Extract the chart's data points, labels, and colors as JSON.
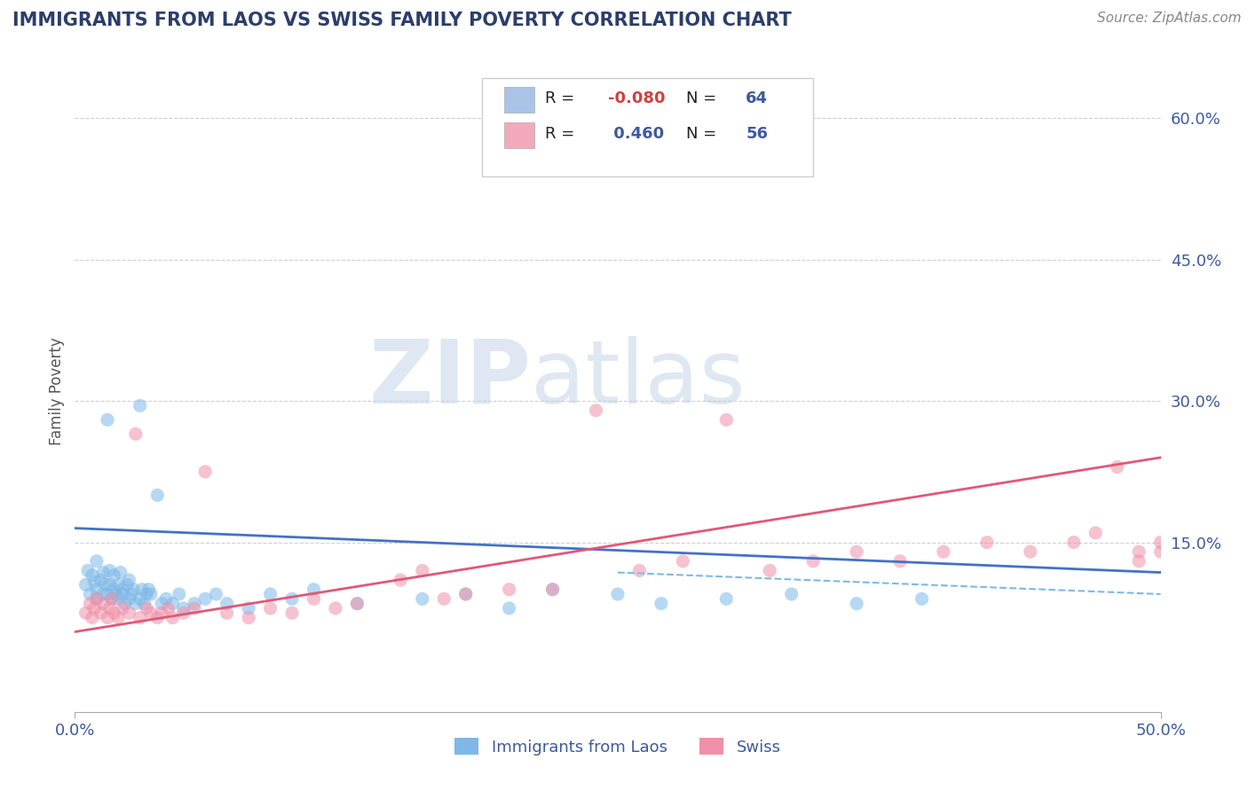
{
  "title": "IMMIGRANTS FROM LAOS VS SWISS FAMILY POVERTY CORRELATION CHART",
  "source": "Source: ZipAtlas.com",
  "ylabel": "Family Poverty",
  "legend_entries": [
    {
      "label": "Immigrants from Laos",
      "R": -0.08,
      "N": 64,
      "color": "#aac4e8"
    },
    {
      "label": "Swiss",
      "R": 0.46,
      "N": 56,
      "color": "#f4a8bc"
    }
  ],
  "yticks": [
    0.0,
    0.15,
    0.3,
    0.45,
    0.6
  ],
  "ytick_labels": [
    "",
    "15.0%",
    "30.0%",
    "45.0%",
    "60.0%"
  ],
  "xlim": [
    0.0,
    0.5
  ],
  "ylim": [
    -0.03,
    0.65
  ],
  "blue_scatter_x": [
    0.005,
    0.006,
    0.007,
    0.008,
    0.009,
    0.01,
    0.01,
    0.01,
    0.012,
    0.013,
    0.013,
    0.014,
    0.015,
    0.015,
    0.016,
    0.016,
    0.017,
    0.018,
    0.018,
    0.019,
    0.02,
    0.02,
    0.021,
    0.022,
    0.022,
    0.023,
    0.024,
    0.025,
    0.025,
    0.026,
    0.027,
    0.028,
    0.03,
    0.03,
    0.031,
    0.032,
    0.033,
    0.034,
    0.035,
    0.038,
    0.04,
    0.042,
    0.045,
    0.048,
    0.05,
    0.055,
    0.06,
    0.065,
    0.07,
    0.08,
    0.09,
    0.1,
    0.11,
    0.13,
    0.16,
    0.18,
    0.2,
    0.22,
    0.25,
    0.27,
    0.3,
    0.33,
    0.36,
    0.39
  ],
  "blue_scatter_y": [
    0.105,
    0.12,
    0.095,
    0.115,
    0.108,
    0.1,
    0.13,
    0.09,
    0.11,
    0.095,
    0.118,
    0.105,
    0.28,
    0.095,
    0.105,
    0.12,
    0.09,
    0.1,
    0.115,
    0.095,
    0.105,
    0.09,
    0.118,
    0.1,
    0.095,
    0.085,
    0.105,
    0.09,
    0.11,
    0.095,
    0.1,
    0.085,
    0.295,
    0.09,
    0.1,
    0.085,
    0.095,
    0.1,
    0.095,
    0.2,
    0.085,
    0.09,
    0.085,
    0.095,
    0.08,
    0.085,
    0.09,
    0.095,
    0.085,
    0.08,
    0.095,
    0.09,
    0.1,
    0.085,
    0.09,
    0.095,
    0.08,
    0.1,
    0.095,
    0.085,
    0.09,
    0.095,
    0.085,
    0.09
  ],
  "pink_scatter_x": [
    0.005,
    0.007,
    0.008,
    0.009,
    0.01,
    0.012,
    0.013,
    0.015,
    0.016,
    0.017,
    0.018,
    0.02,
    0.022,
    0.025,
    0.028,
    0.03,
    0.033,
    0.035,
    0.038,
    0.04,
    0.043,
    0.045,
    0.05,
    0.055,
    0.06,
    0.07,
    0.08,
    0.09,
    0.1,
    0.11,
    0.12,
    0.13,
    0.15,
    0.16,
    0.17,
    0.18,
    0.2,
    0.22,
    0.24,
    0.26,
    0.28,
    0.3,
    0.32,
    0.34,
    0.36,
    0.38,
    0.4,
    0.42,
    0.44,
    0.46,
    0.47,
    0.48,
    0.49,
    0.5,
    0.49,
    0.5
  ],
  "pink_scatter_y": [
    0.075,
    0.085,
    0.07,
    0.08,
    0.09,
    0.075,
    0.085,
    0.07,
    0.08,
    0.09,
    0.075,
    0.07,
    0.08,
    0.075,
    0.265,
    0.07,
    0.08,
    0.075,
    0.07,
    0.075,
    0.08,
    0.07,
    0.075,
    0.08,
    0.225,
    0.075,
    0.07,
    0.08,
    0.075,
    0.09,
    0.08,
    0.085,
    0.11,
    0.12,
    0.09,
    0.095,
    0.1,
    0.1,
    0.29,
    0.12,
    0.13,
    0.28,
    0.12,
    0.13,
    0.14,
    0.13,
    0.14,
    0.15,
    0.14,
    0.15,
    0.16,
    0.23,
    0.14,
    0.15,
    0.13,
    0.14
  ],
  "blue_line_x": [
    0.0,
    0.5
  ],
  "blue_line_y": [
    0.165,
    0.118
  ],
  "blue_dashed_line_x": [
    0.25,
    0.5
  ],
  "blue_dashed_line_y": [
    0.118,
    0.095
  ],
  "pink_line_x": [
    0.0,
    0.5
  ],
  "pink_line_y": [
    0.055,
    0.24
  ],
  "watermark_zip": "ZIP",
  "watermark_atlas": "atlas",
  "title_color": "#2c3e6b",
  "source_color": "#888888",
  "axis_label_color": "#555555",
  "tick_color": "#3d5a9e",
  "scatter_blue_color": "#7db8e8",
  "scatter_pink_color": "#f090a8",
  "line_blue_color": "#4472c4",
  "line_pink_color": "#e05878",
  "grid_color": "#d0d0d0",
  "background_color": "#ffffff",
  "legend_R_color": "#e05050",
  "legend_N_color": "#3d5a9e"
}
